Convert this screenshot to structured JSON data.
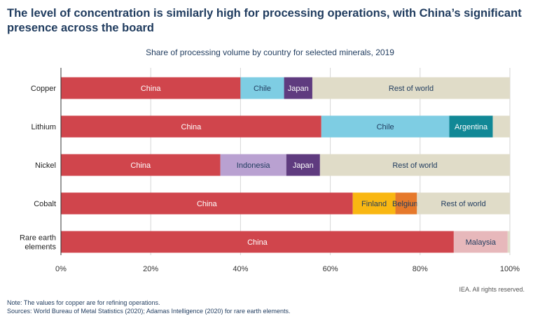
{
  "title": "The level of concentration is similarly high for processing operations, with China’s significant presence across the board",
  "credit": "IEA. All rights reserved.",
  "notes": [
    "Note: The values for copper are for refining operations.",
    "Sources: World Bureau of Metal Statistics (2020); Adamas Intelligence (2020) for rare earth elements."
  ],
  "chart_data": {
    "type": "bar",
    "orientation": "horizontal",
    "stacked": true,
    "title": "Share of processing volume by country for selected minerals, 2019",
    "xlabel": "",
    "ylabel": "",
    "xlim": [
      0,
      100
    ],
    "x_ticks": [
      "0%",
      "20%",
      "40%",
      "60%",
      "80%",
      "100%"
    ],
    "grid": "vertical",
    "colors": {
      "China": "#d0454c",
      "Chile": "#7ecde3",
      "Japan": "#5f3b7f",
      "Rest of world": "#e0dcc8",
      "Argentina": "#118896",
      "Indonesia": "#b9a1d1",
      "Finland": "#f9b712",
      "Belgium": "#e6792b",
      "Malaysia": "#e7b8bb"
    },
    "bars": [
      {
        "category": "Copper",
        "segments": [
          {
            "name": "China",
            "value": 40,
            "label": "China",
            "label_color": "#ffffff"
          },
          {
            "name": "Chile",
            "value": 9.7,
            "label": "Chile",
            "label_color": "#1f3b5e"
          },
          {
            "name": "Japan",
            "value": 6.3,
            "label": "Japan",
            "label_color": "#ffffff"
          },
          {
            "name": "Rest of world",
            "value": 44,
            "label": "Rest of world",
            "label_color": "#1f3b5e"
          }
        ]
      },
      {
        "category": "Lithium",
        "segments": [
          {
            "name": "China",
            "value": 58,
            "label": "China",
            "label_color": "#ffffff"
          },
          {
            "name": "Chile",
            "value": 28.5,
            "label": "Chile",
            "label_color": "#1f3b5e"
          },
          {
            "name": "Argentina",
            "value": 9.7,
            "label": "Argentina",
            "label_color": "#ffffff"
          },
          {
            "name": "Rest of world",
            "value": 3.8,
            "label": "",
            "label_color": "#1f3b5e"
          }
        ]
      },
      {
        "category": "Nickel",
        "segments": [
          {
            "name": "China",
            "value": 35.5,
            "label": "China",
            "label_color": "#ffffff"
          },
          {
            "name": "Indonesia",
            "value": 14.7,
            "label": "Indonesia",
            "label_color": "#1f3b5e"
          },
          {
            "name": "Japan",
            "value": 7.5,
            "label": "Japan",
            "label_color": "#ffffff"
          },
          {
            "name": "Rest of world",
            "value": 42.3,
            "label": "Rest of world",
            "label_color": "#1f3b5e"
          }
        ]
      },
      {
        "category": "Cobalt",
        "segments": [
          {
            "name": "China",
            "value": 65,
            "label": "China",
            "label_color": "#ffffff"
          },
          {
            "name": "Finland",
            "value": 9.5,
            "label": "Finland",
            "label_color": "#1f3b5e"
          },
          {
            "name": "Belgium",
            "value": 4.8,
            "label": "Belgium",
            "label_color": "#1f3b5e"
          },
          {
            "name": "Rest of world",
            "value": 20.7,
            "label": "Rest of world",
            "label_color": "#1f3b5e"
          }
        ]
      },
      {
        "category": "Rare earth elements",
        "category_lines": [
          "Rare earth",
          "elements"
        ],
        "segments": [
          {
            "name": "China",
            "value": 87.5,
            "label": "China",
            "label_color": "#ffffff"
          },
          {
            "name": "Malaysia",
            "value": 12,
            "label": "Malaysia",
            "label_color": "#1f3b5e"
          },
          {
            "name": "Rest of world",
            "value": 0.5,
            "label": "",
            "label_color": "#1f3b5e"
          }
        ]
      }
    ]
  }
}
